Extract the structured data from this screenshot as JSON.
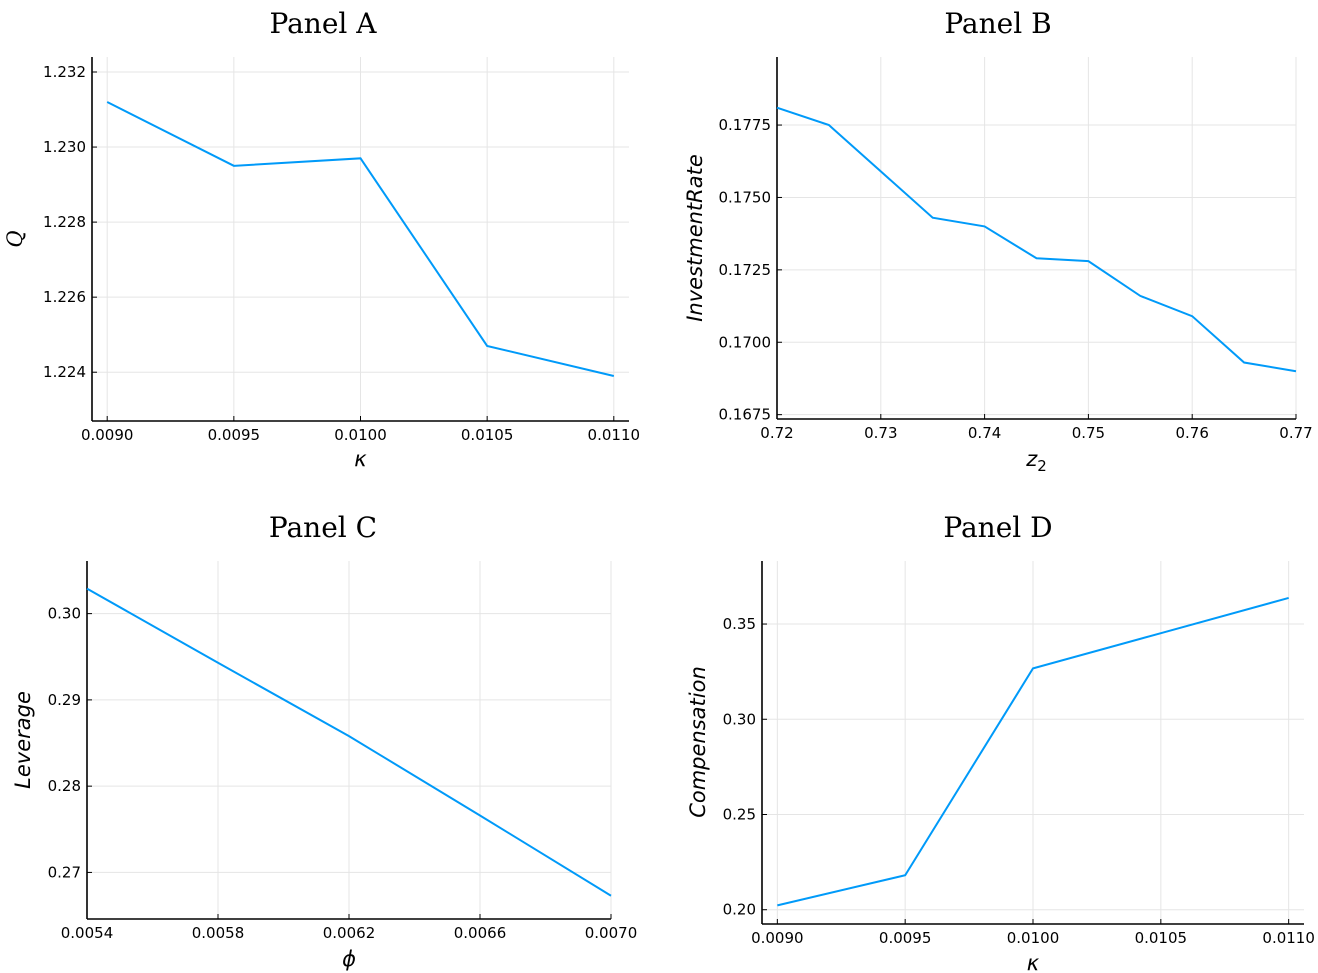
{
  "colors": {
    "series": "#009af9",
    "grid": "#e5e5e5",
    "axis": "#000000"
  },
  "chart_data": [
    {
      "type": "line",
      "title": "Panel A",
      "xlabel": "κ",
      "ylabel": "Q",
      "xlim": [
        0.00894,
        0.01106
      ],
      "ylim": [
        1.2227,
        1.2324
      ],
      "xticks": [
        0.009,
        0.0095,
        0.01,
        0.0105,
        0.011
      ],
      "xtick_labels": [
        "0.0090",
        "0.0095",
        "0.0100",
        "0.0105",
        "0.0110"
      ],
      "yticks": [
        1.224,
        1.226,
        1.228,
        1.23,
        1.232
      ],
      "ytick_labels": [
        "1.224",
        "1.226",
        "1.228",
        "1.230",
        "1.232"
      ],
      "grid": true,
      "series": [
        {
          "x": [
            0.009,
            0.0095,
            0.01,
            0.0105,
            0.011
          ],
          "y": [
            1.2312,
            1.2295,
            1.2297,
            1.2247,
            1.2239
          ]
        }
      ]
    },
    {
      "type": "line",
      "title": "Panel B",
      "xlabel": "z",
      "xlabel_sub": "2",
      "ylabel": "InvestmentRate",
      "xlim": [
        0.72,
        0.77
      ],
      "ylim": [
        0.16735,
        0.17985
      ],
      "xticks": [
        0.72,
        0.73,
        0.74,
        0.75,
        0.76,
        0.77
      ],
      "xtick_labels": [
        "0.72",
        "0.73",
        "0.74",
        "0.75",
        "0.76",
        "0.77"
      ],
      "yticks": [
        0.1675,
        0.17,
        0.1725,
        0.175,
        0.1775
      ],
      "ytick_labels": [
        "0.1675",
        "0.1700",
        "0.1725",
        "0.1750",
        "0.1775"
      ],
      "grid": true,
      "series": [
        {
          "x": [
            0.72,
            0.725,
            0.73,
            0.735,
            0.74,
            0.745,
            0.75,
            0.755,
            0.76,
            0.765,
            0.77
          ],
          "y": [
            0.1781,
            0.1775,
            0.1759,
            0.1743,
            0.174,
            0.1729,
            0.1728,
            0.1716,
            0.1709,
            0.1693,
            0.169
          ]
        }
      ]
    },
    {
      "type": "line",
      "title": "Panel C",
      "xlabel": "ϕ",
      "ylabel": "Leverage",
      "xlim": [
        0.0054,
        0.007
      ],
      "ylim": [
        0.2646,
        0.3061
      ],
      "xticks": [
        0.0054,
        0.0058,
        0.0062,
        0.0066,
        0.007
      ],
      "xtick_labels": [
        "0.0054",
        "0.0058",
        "0.0062",
        "0.0066",
        "0.0070"
      ],
      "yticks": [
        0.27,
        0.28,
        0.29,
        0.3
      ],
      "ytick_labels": [
        "0.27",
        "0.28",
        "0.29",
        "0.30"
      ],
      "grid": true,
      "series": [
        {
          "x": [
            0.0054,
            0.0058,
            0.0062,
            0.0066,
            0.007
          ],
          "y": [
            0.3029,
            0.2943,
            0.2858,
            0.2766,
            0.2673
          ]
        }
      ]
    },
    {
      "type": "line",
      "title": "Panel D",
      "xlabel": "κ",
      "ylabel": "Compensation",
      "xlim": [
        0.00894,
        0.01106
      ],
      "ylim": [
        0.1925,
        0.3831
      ],
      "xticks": [
        0.009,
        0.0095,
        0.01,
        0.0105,
        0.011
      ],
      "xtick_labels": [
        "0.0090",
        "0.0095",
        "0.0100",
        "0.0105",
        "0.0110"
      ],
      "yticks": [
        0.2,
        0.25,
        0.3,
        0.35
      ],
      "ytick_labels": [
        "0.20",
        "0.25",
        "0.30",
        "0.35"
      ],
      "grid": true,
      "series": [
        {
          "x": [
            0.009,
            0.0095,
            0.01,
            0.0105,
            0.011
          ],
          "y": [
            0.2023,
            0.2181,
            0.3267,
            0.3452,
            0.3637
          ]
        }
      ]
    }
  ]
}
